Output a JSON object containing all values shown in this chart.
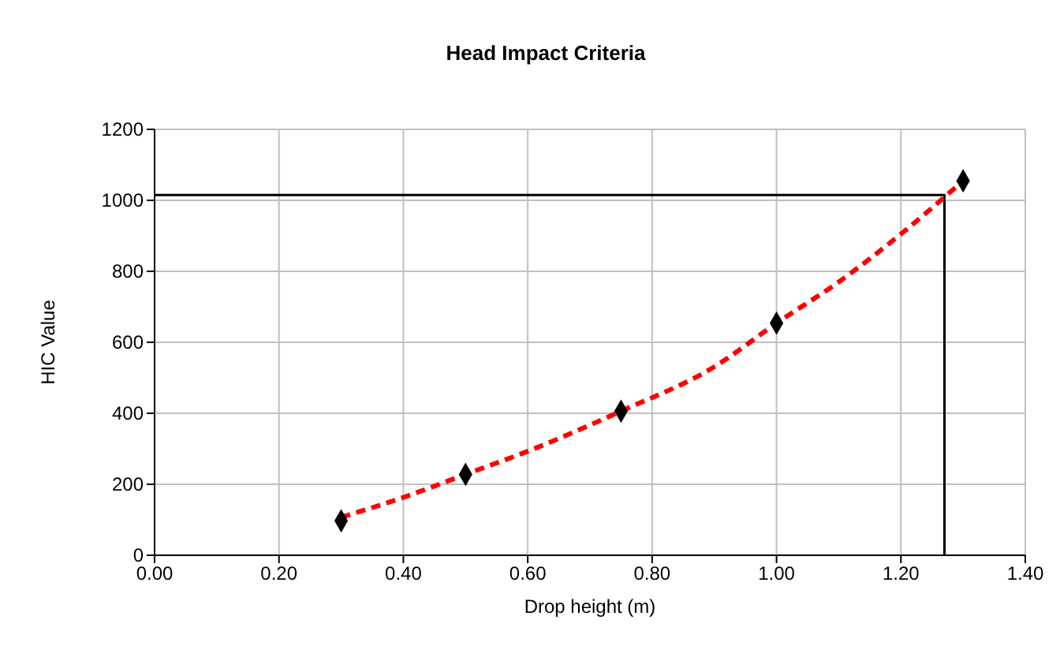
{
  "chart_data": {
    "type": "scatter",
    "title": "Head Impact Criteria",
    "xlabel": "Drop height (m)",
    "ylabel": "HIC Value",
    "xlim": [
      0,
      1.4
    ],
    "xticks": [
      {
        "value": 0,
        "label": "0.00"
      },
      {
        "value": 0.2,
        "label": "0.20"
      },
      {
        "value": 0.4,
        "label": "0.40"
      },
      {
        "value": 0.6,
        "label": "0.60"
      },
      {
        "value": 0.8,
        "label": "0.80"
      },
      {
        "value": 1,
        "label": "1.00"
      },
      {
        "value": 1.2,
        "label": "1.20"
      },
      {
        "value": 1.4,
        "label": "1.40"
      }
    ],
    "ylim": [
      0,
      1200
    ],
    "yticks": [
      0,
      200,
      400,
      600,
      800,
      1000,
      1200
    ],
    "grid": true,
    "series": [
      {
        "type": "line",
        "color": "#000000",
        "line_style": "solid",
        "marker": "none",
        "x": [
          0,
          1.27,
          1.27
        ],
        "values": [
          1015,
          1015,
          0
        ]
      },
      {
        "type": "line",
        "color": "#ff0000",
        "line_style": "dashed",
        "marker": "none",
        "x": [
          0.3,
          0.4,
          0.5,
          0.6,
          0.75,
          0.9,
          1.0,
          1.1,
          1.2,
          1.3
        ],
        "values": [
          107,
          163,
          228,
          293,
          406,
          531,
          654,
          770,
          905,
          1055
        ]
      },
      {
        "type": "scatter",
        "color": "#000000",
        "marker": "diamond",
        "x": [
          0.3,
          0.5,
          0.75,
          1.0,
          1.3
        ],
        "values": [
          97,
          228,
          406,
          654,
          1055
        ]
      }
    ]
  }
}
